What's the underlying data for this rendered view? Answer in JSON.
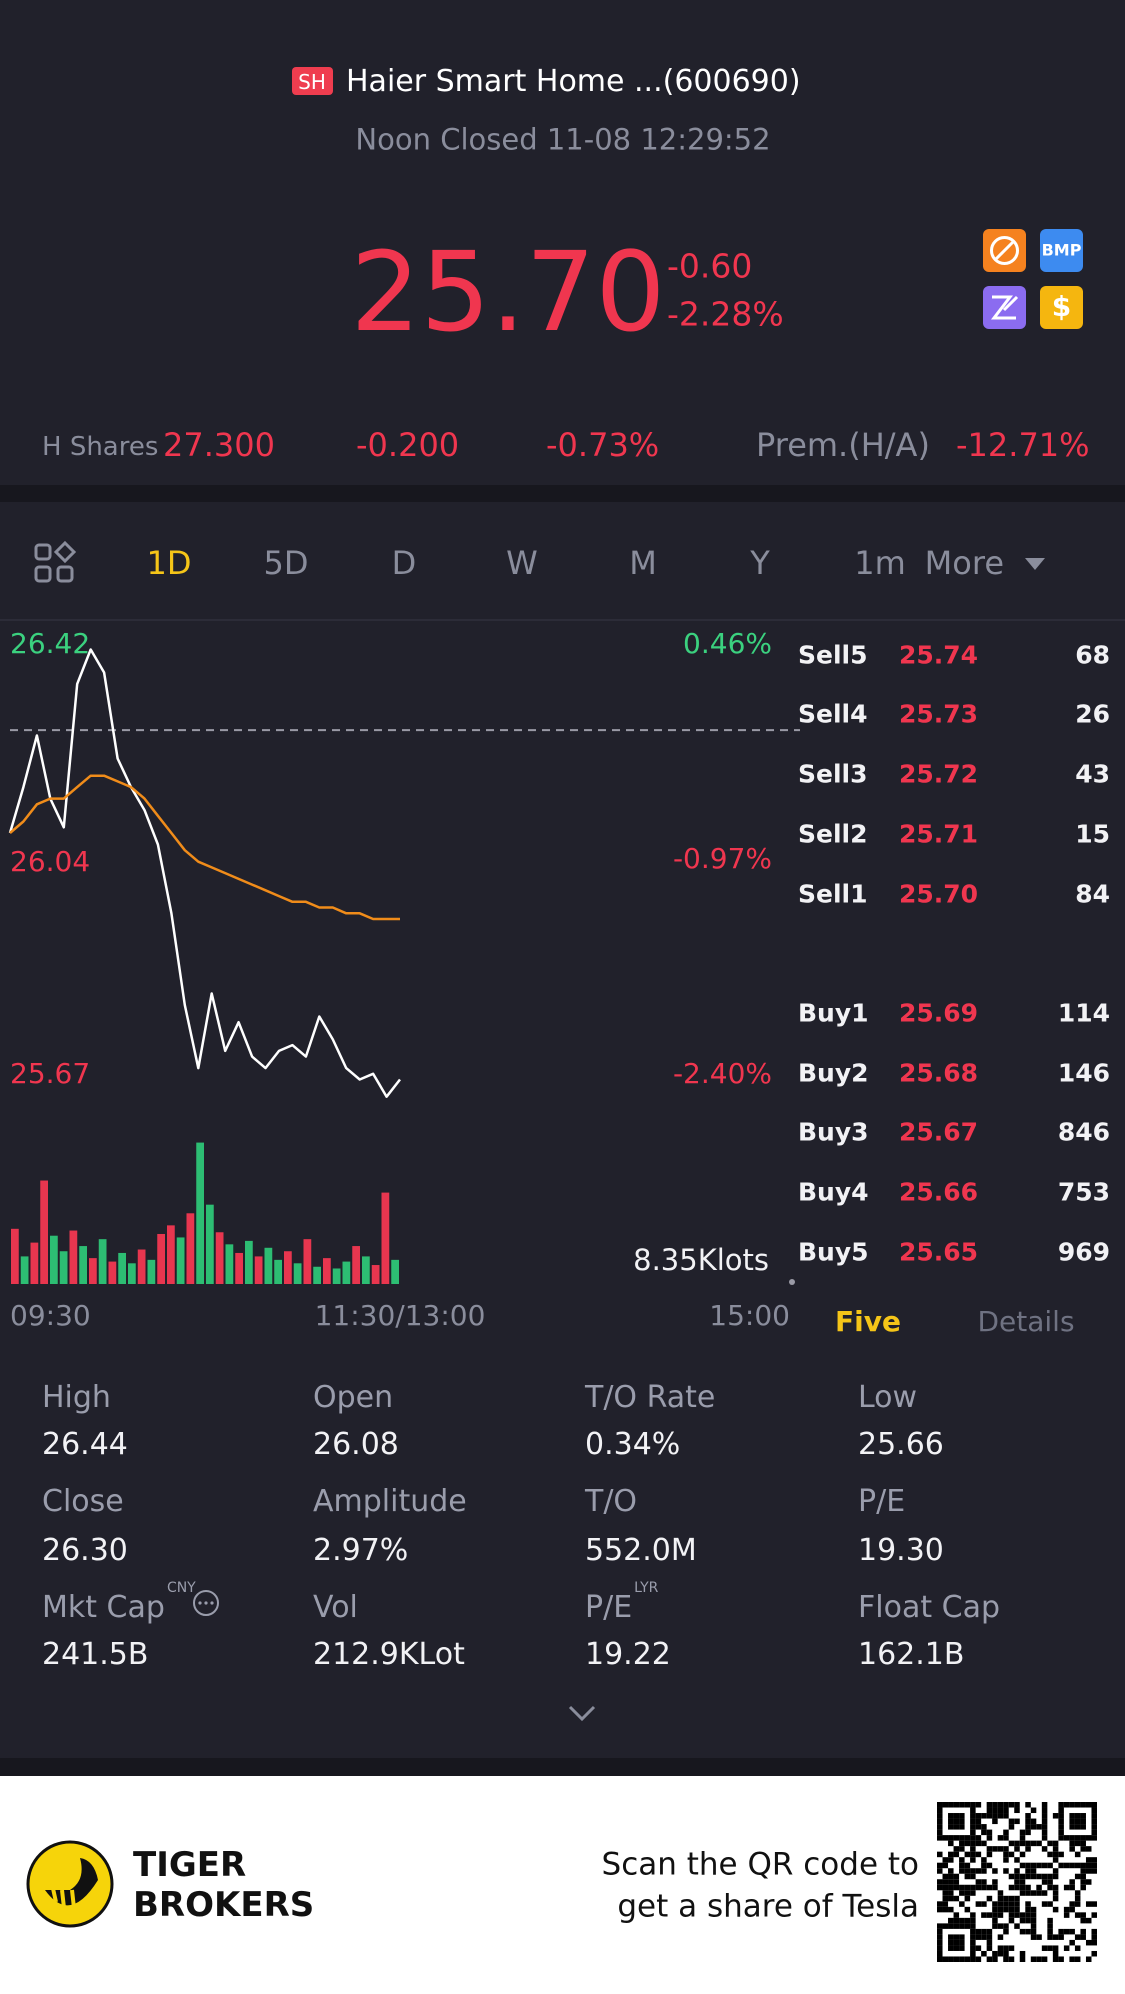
{
  "header": {
    "exchange": "SH",
    "title": "Haier Smart Home ...(600690)",
    "status": "Noon Closed 11-08 12:29:52"
  },
  "quote": {
    "price": "25.70",
    "change": "-0.60",
    "change_pct": "-2.28%",
    "badges": [
      "BMP",
      "$"
    ]
  },
  "h_shares": {
    "label": "H Shares",
    "price": "27.300",
    "change": "-0.200",
    "change_pct": "-0.73%",
    "premium_label": "Prem.(H/A)",
    "premium": "-12.71%"
  },
  "tabs": [
    "1D",
    "5D",
    "D",
    "W",
    "M",
    "Y",
    "1m",
    "More"
  ],
  "active_tab": 0,
  "chart_data": {
    "type": "line",
    "ylim": [
      25.67,
      26.42
    ],
    "yticks": [
      26.42,
      26.04,
      25.67
    ],
    "y2lim": [
      -2.4,
      0.46
    ],
    "y2ticks": [
      {
        "value": 0.46,
        "label": "0.46%"
      },
      {
        "value": -0.97,
        "label": "-0.97%"
      },
      {
        "value": -2.4,
        "label": "-2.40%"
      }
    ],
    "x_labels": [
      "09:30",
      "11:30/13:00",
      "15:00"
    ],
    "series": [
      {
        "color": "#ffffff",
        "values": [
          26.12,
          26.2,
          26.29,
          26.18,
          26.13,
          26.38,
          26.44,
          26.4,
          26.25,
          26.2,
          26.16,
          26.1,
          25.98,
          25.82,
          25.71,
          25.84,
          25.74,
          25.79,
          25.73,
          25.71,
          25.74,
          25.75,
          25.73,
          25.8,
          25.76,
          25.71,
          25.69,
          25.7,
          25.66,
          25.69
        ]
      },
      {
        "color": "#f08c1a",
        "values": [
          26.12,
          26.14,
          26.17,
          26.18,
          26.18,
          26.2,
          26.22,
          26.22,
          26.21,
          26.2,
          26.18,
          26.15,
          26.12,
          26.09,
          26.07,
          26.06,
          26.05,
          26.04,
          26.03,
          26.02,
          26.01,
          26.0,
          26.0,
          25.99,
          25.99,
          25.98,
          25.98,
          25.97,
          25.97,
          25.97
        ]
      }
    ],
    "volume_label": {
      "value": 8.35,
      "label": "8.35Klots"
    },
    "volume": [
      3.2,
      1.6,
      2.4,
      6.0,
      2.8,
      1.9,
      3.1,
      2.2,
      1.5,
      2.6,
      1.3,
      1.8,
      1.2,
      2.0,
      1.4,
      2.9,
      3.4,
      2.7,
      4.1,
      8.2,
      4.6,
      3.0,
      2.3,
      1.8,
      2.5,
      1.6,
      2.1,
      1.4,
      1.9,
      1.2,
      2.6,
      1.0,
      1.5,
      0.9,
      1.3,
      2.2,
      1.6,
      1.1,
      5.3,
      1.4
    ],
    "volume_colors": [
      "#e8364f",
      "#2dbd73",
      "#e8364f",
      "#e8364f",
      "#2dbd73",
      "#2dbd73",
      "#e8364f",
      "#2dbd73",
      "#e8364f",
      "#2dbd73",
      "#e8364f",
      "#2dbd73",
      "#2dbd73",
      "#e8364f",
      "#2dbd73",
      "#e8364f",
      "#e8364f",
      "#2dbd73",
      "#e8364f",
      "#2dbd73",
      "#2dbd73",
      "#e8364f",
      "#2dbd73",
      "#e8364f",
      "#2dbd73",
      "#e8364f",
      "#2dbd73",
      "#2dbd73",
      "#e8364f",
      "#2dbd73",
      "#e8364f",
      "#2dbd73",
      "#e8364f",
      "#2dbd73",
      "#2dbd73",
      "#e8364f",
      "#2dbd73",
      "#e8364f",
      "#e8364f",
      "#2dbd73"
    ]
  },
  "order_book": {
    "rows": [
      [
        "Sell5",
        "25.74",
        "68"
      ],
      [
        "Sell4",
        "25.73",
        "26"
      ],
      [
        "Sell3",
        "25.72",
        "43"
      ],
      [
        "Sell2",
        "25.71",
        "15"
      ],
      [
        "Sell1",
        "25.70",
        "84"
      ],
      [
        "Buy1",
        "25.69",
        "114"
      ],
      [
        "Buy2",
        "25.68",
        "146"
      ],
      [
        "Buy3",
        "25.67",
        "846"
      ],
      [
        "Buy4",
        "25.66",
        "753"
      ],
      [
        "Buy5",
        "25.65",
        "969"
      ]
    ],
    "tabs": [
      "Five",
      "Details"
    ]
  },
  "stats": [
    {
      "label": "High",
      "value": "26.44"
    },
    {
      "label": "Open",
      "value": "26.08"
    },
    {
      "label": "T/O Rate",
      "value": "0.34%"
    },
    {
      "label": "Low",
      "value": "25.66"
    },
    {
      "label": "Close",
      "value": "26.30"
    },
    {
      "label": "Amplitude",
      "value": "2.97%"
    },
    {
      "label": "T/O",
      "value": "552.0M"
    },
    {
      "label": "P/E",
      "value": "19.30"
    },
    {
      "label": "Mkt Cap",
      "value": "241.5B",
      "superscript": "CNY"
    },
    {
      "label": "Vol",
      "value": "212.9KLot"
    },
    {
      "label": "P/E",
      "value": "19.22",
      "superscript": "LYR"
    },
    {
      "label": "Float Cap",
      "value": "162.1B"
    }
  ],
  "footer": {
    "brand": [
      "TIGER",
      "BROKERS"
    ],
    "promo": [
      "Scan the QR code to",
      "get a share of Tesla"
    ]
  }
}
